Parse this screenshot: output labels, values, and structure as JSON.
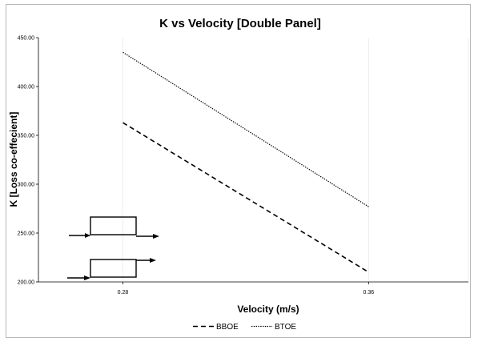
{
  "chart_data": {
    "type": "line",
    "title": "K vs Velocity [Double Panel]",
    "xlabel": "Velocity (m/s)",
    "ylabel": "K [Loss co-effecient]",
    "x_tick_labels": [
      "0.28",
      "0.36"
    ],
    "x_ticks": [
      0.28,
      0.36
    ],
    "xlim": [
      0.2525,
      0.3925
    ],
    "ylim": [
      200,
      450
    ],
    "y_tick_labels": [
      "200.00",
      "250.00",
      "300.00",
      "350.00",
      "400.00",
      "450.00"
    ],
    "y_ticks": [
      200,
      250,
      300,
      350,
      400,
      450
    ],
    "grid": "vertical",
    "legend_position": "bottom",
    "series": [
      {
        "name": "BBOE",
        "style": "dashed",
        "color": "#000000",
        "x": [
          0.28,
          0.36
        ],
        "y": [
          363,
          210
        ]
      },
      {
        "name": "BTOE",
        "style": "dotted",
        "color": "#000000",
        "x": [
          0.28,
          0.36
        ],
        "y": [
          435,
          277
        ]
      }
    ]
  },
  "inset_icon": "double-panel-flow-schematic-icon"
}
